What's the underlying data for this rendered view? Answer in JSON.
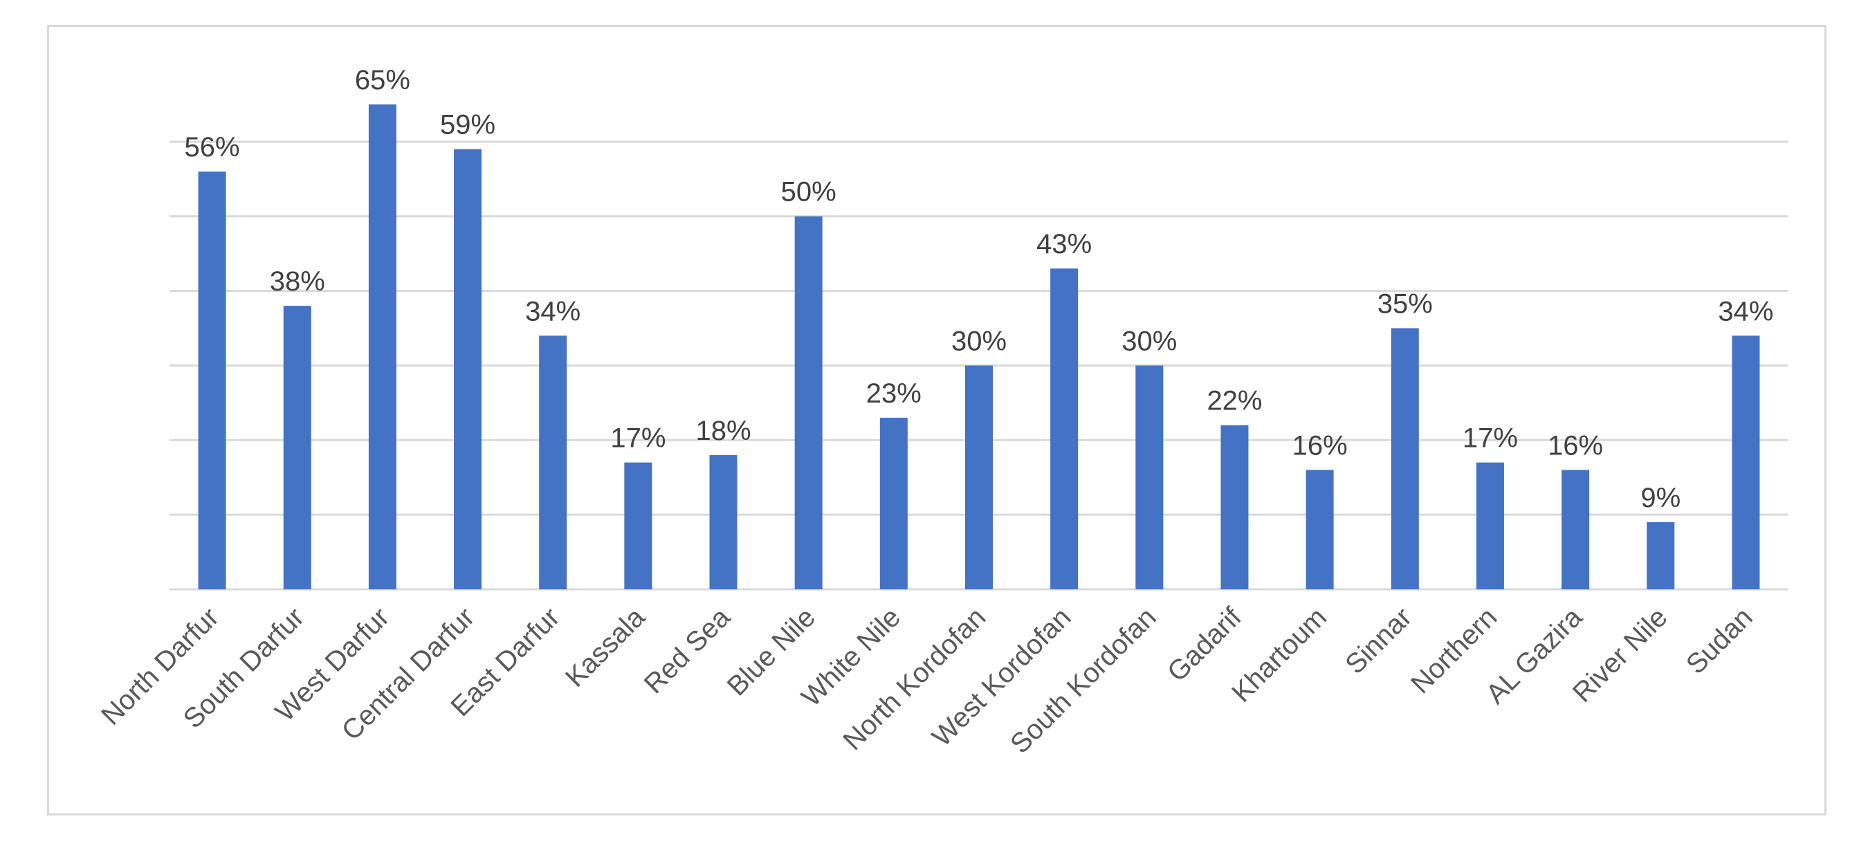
{
  "chart_data": {
    "type": "bar",
    "title": "",
    "xlabel": "",
    "ylabel": "",
    "ylim": [
      0,
      70
    ],
    "grid": true,
    "legend": "none",
    "bar_color": "#4472c4",
    "categories": [
      "North Darfur",
      "South Darfur",
      "West Darfur",
      "Central Darfur",
      "East Darfur",
      "Kassala",
      "Red Sea",
      "Blue Nile",
      "White Nile",
      "North Kordofan",
      "West Kordofan",
      "South Kordofan",
      "Gadarif",
      "Khartoum",
      "Sinnar",
      "Northern",
      "AL Gazira",
      "River Nile",
      "Sudan"
    ],
    "values": [
      56,
      38,
      65,
      59,
      34,
      17,
      18,
      50,
      23,
      30,
      43,
      30,
      22,
      16,
      35,
      17,
      16,
      9,
      34
    ],
    "data_labels": [
      "56%",
      "38%",
      "65%",
      "59%",
      "34%",
      "17%",
      "18%",
      "50%",
      "23%",
      "30%",
      "43%",
      "30%",
      "22%",
      "16%",
      "35%",
      "17%",
      "16%",
      "9%",
      "34%"
    ]
  }
}
